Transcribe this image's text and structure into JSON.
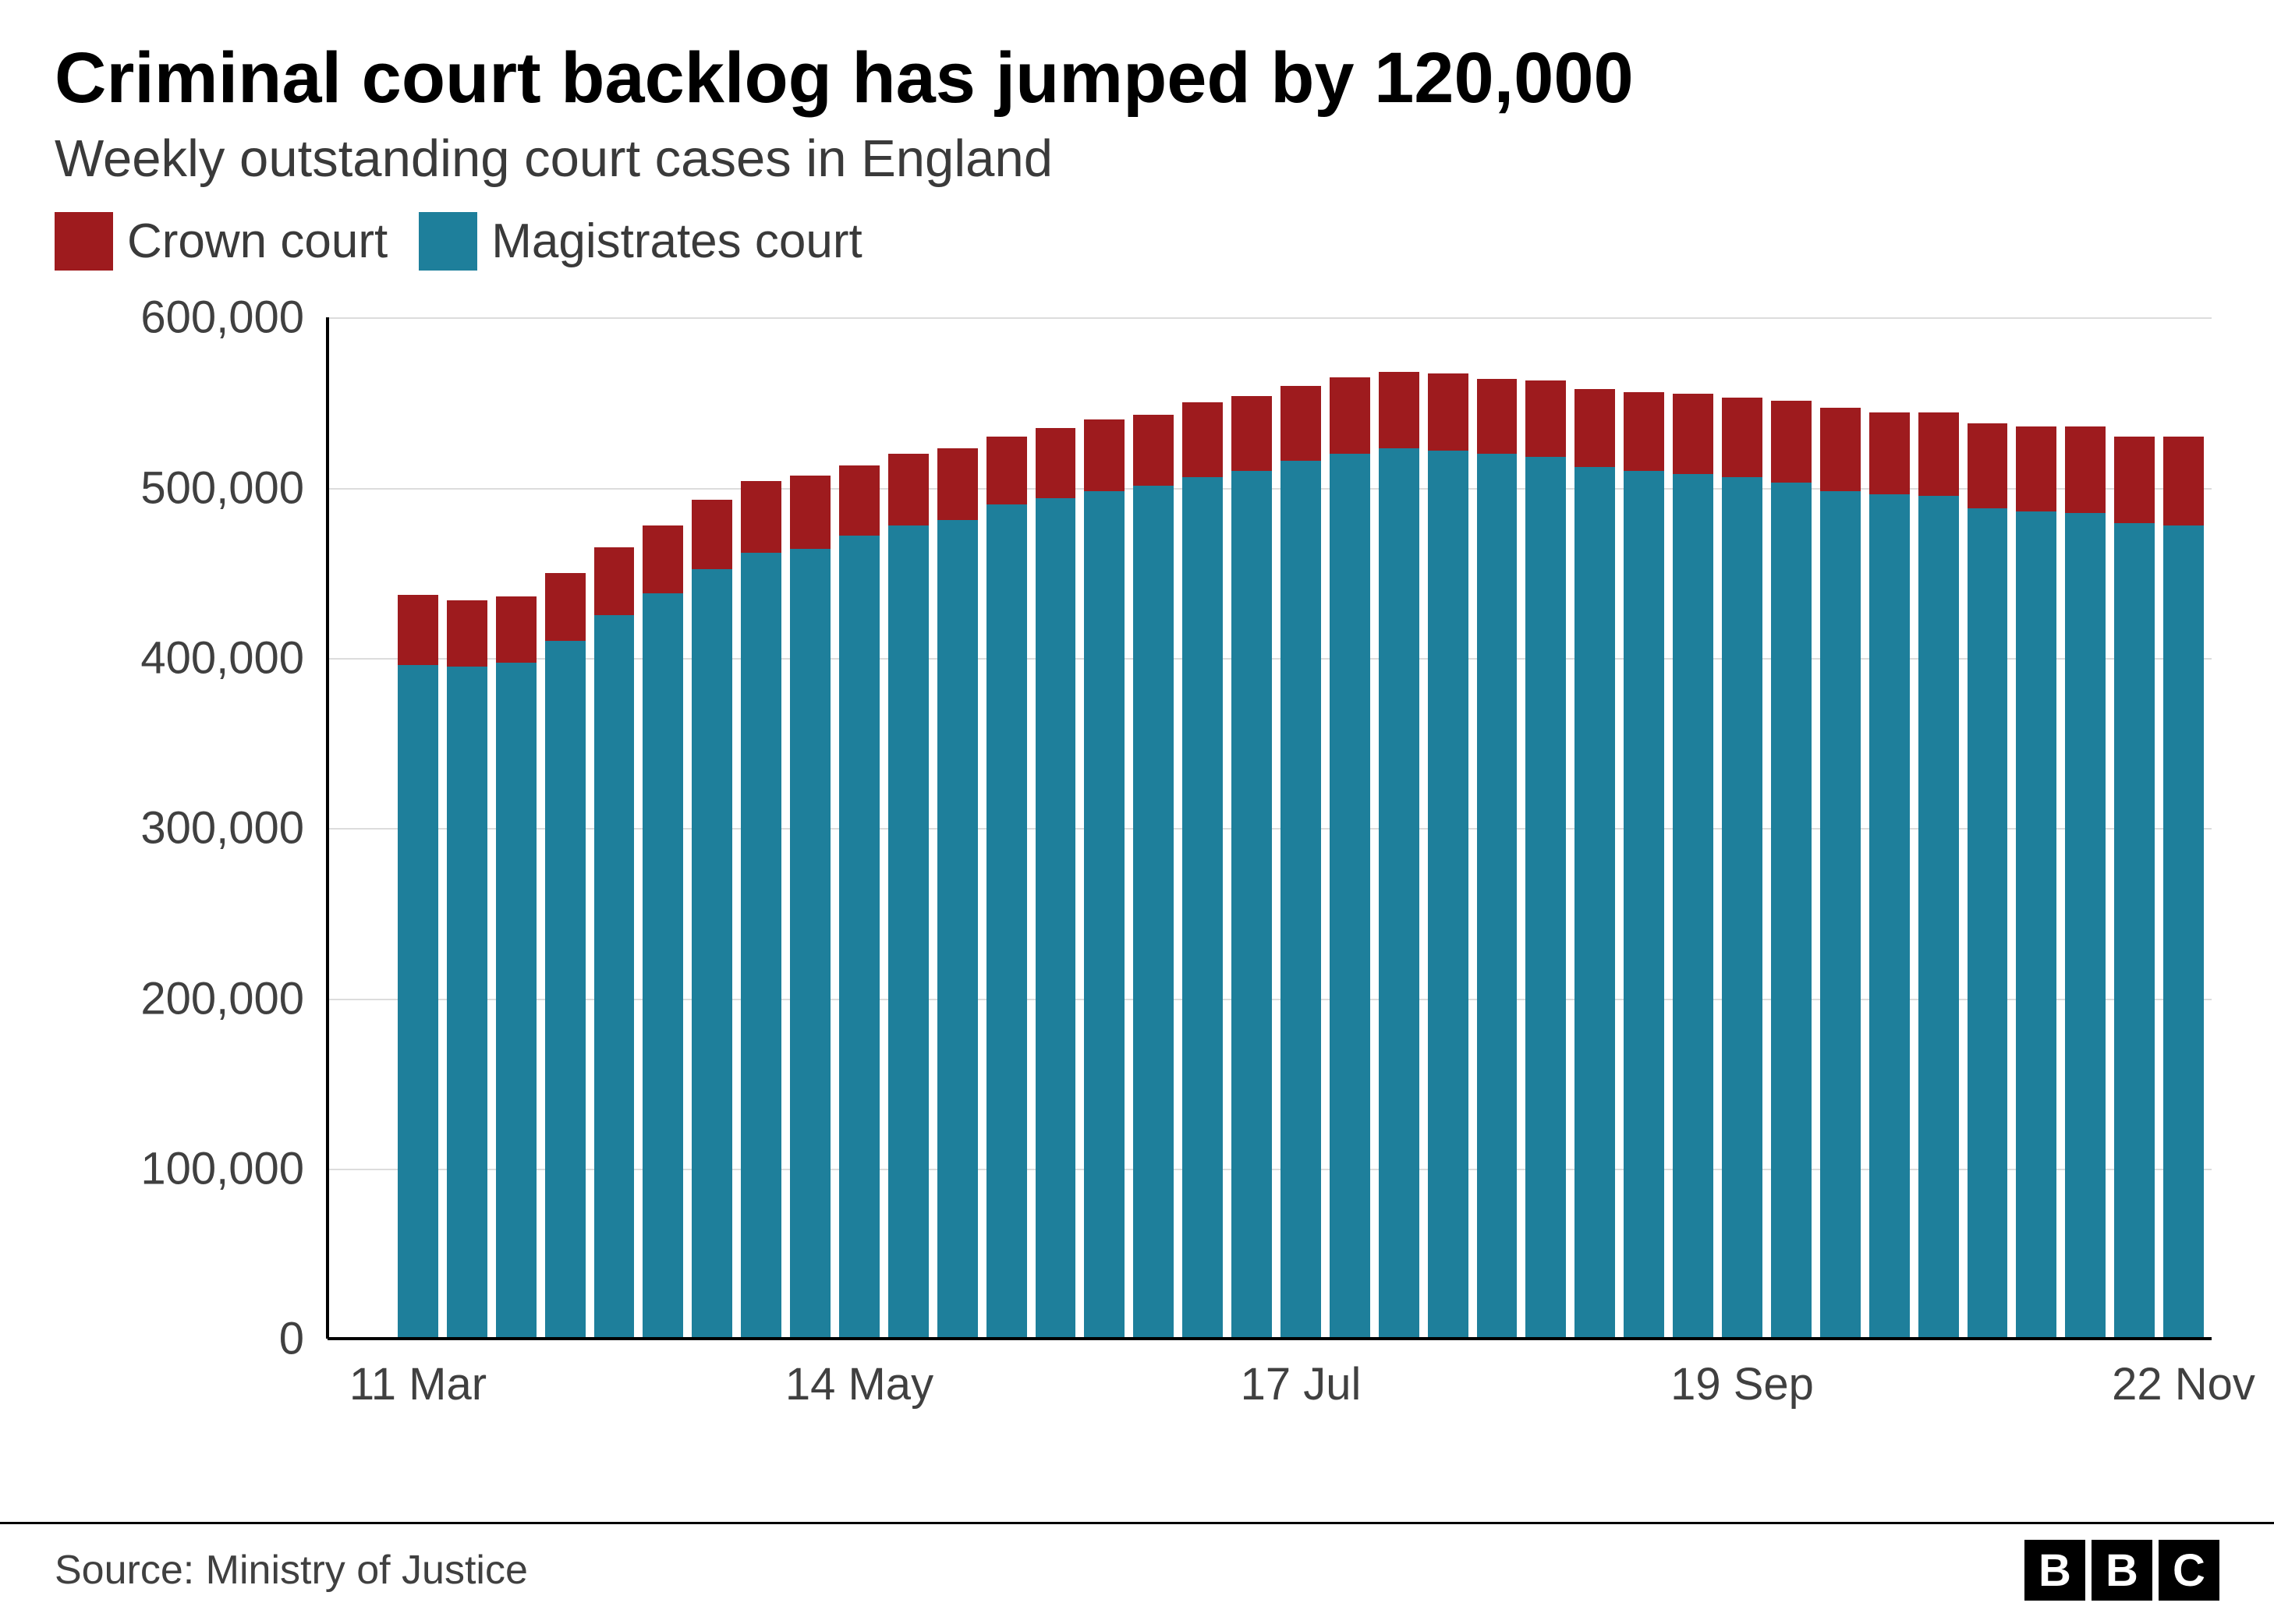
{
  "title": "Criminal court backlog has jumped by 120,000",
  "subtitle": "Weekly outstanding court cases in England",
  "legend": [
    {
      "label": "Crown court",
      "color": "#9e1b1e"
    },
    {
      "label": "Magistrates court",
      "color": "#1e7f9b"
    }
  ],
  "chart": {
    "type": "stacked-bar",
    "background_color": "#ffffff",
    "grid_color": "#dcdcdc",
    "axis_color": "#000000",
    "text_color": "#404040",
    "title_fontsize": 92,
    "subtitle_fontsize": 67,
    "legend_fontsize": 62,
    "tick_fontsize": 58,
    "y": {
      "min": 0,
      "max": 600000,
      "tick_step": 100000,
      "ticks": [
        0,
        100000,
        200000,
        300000,
        400000,
        500000,
        600000
      ],
      "tick_labels": [
        "0",
        "100,000",
        "200,000",
        "300,000",
        "400,000",
        "500,000",
        "600,000"
      ]
    },
    "x": {
      "tick_indices": [
        0,
        9,
        18,
        27,
        36
      ],
      "tick_labels": [
        "11 Mar",
        "14 May",
        "17 Jul",
        "19 Sep",
        "22 Nov"
      ]
    },
    "series_colors": {
      "crown": "#9e1b1e",
      "magistrates": "#1e7f9b"
    },
    "bar_gap_ratio": 0.22,
    "data": [
      {
        "magistrates": 396000,
        "crown": 41000
      },
      {
        "magistrates": 395000,
        "crown": 39000
      },
      {
        "magistrates": 397000,
        "crown": 39000
      },
      {
        "magistrates": 410000,
        "crown": 40000
      },
      {
        "magistrates": 425000,
        "crown": 40000
      },
      {
        "magistrates": 438000,
        "crown": 40000
      },
      {
        "magistrates": 452000,
        "crown": 41000
      },
      {
        "magistrates": 462000,
        "crown": 42000
      },
      {
        "magistrates": 464000,
        "crown": 43000
      },
      {
        "magistrates": 472000,
        "crown": 41000
      },
      {
        "magistrates": 478000,
        "crown": 42000
      },
      {
        "magistrates": 481000,
        "crown": 42000
      },
      {
        "magistrates": 490000,
        "crown": 40000
      },
      {
        "magistrates": 494000,
        "crown": 41000
      },
      {
        "magistrates": 498000,
        "crown": 42000
      },
      {
        "magistrates": 501000,
        "crown": 42000
      },
      {
        "magistrates": 506000,
        "crown": 44000
      },
      {
        "magistrates": 510000,
        "crown": 44000
      },
      {
        "magistrates": 516000,
        "crown": 44000
      },
      {
        "magistrates": 520000,
        "crown": 45000
      },
      {
        "magistrates": 523000,
        "crown": 45000
      },
      {
        "magistrates": 522000,
        "crown": 45000
      },
      {
        "magistrates": 520000,
        "crown": 44000
      },
      {
        "magistrates": 518000,
        "crown": 45000
      },
      {
        "magistrates": 512000,
        "crown": 46000
      },
      {
        "magistrates": 510000,
        "crown": 46000
      },
      {
        "magistrates": 508000,
        "crown": 47000
      },
      {
        "magistrates": 506000,
        "crown": 47000
      },
      {
        "magistrates": 503000,
        "crown": 48000
      },
      {
        "magistrates": 498000,
        "crown": 49000
      },
      {
        "magistrates": 496000,
        "crown": 48000
      },
      {
        "magistrates": 495000,
        "crown": 49000
      },
      {
        "magistrates": 488000,
        "crown": 50000
      },
      {
        "magistrates": 486000,
        "crown": 50000
      },
      {
        "magistrates": 485000,
        "crown": 51000
      },
      {
        "magistrates": 479000,
        "crown": 51000
      },
      {
        "magistrates": 478000,
        "crown": 52000
      }
    ]
  },
  "footer": {
    "source": "Source: Ministry of Justice",
    "logo": [
      "B",
      "B",
      "C"
    ]
  }
}
